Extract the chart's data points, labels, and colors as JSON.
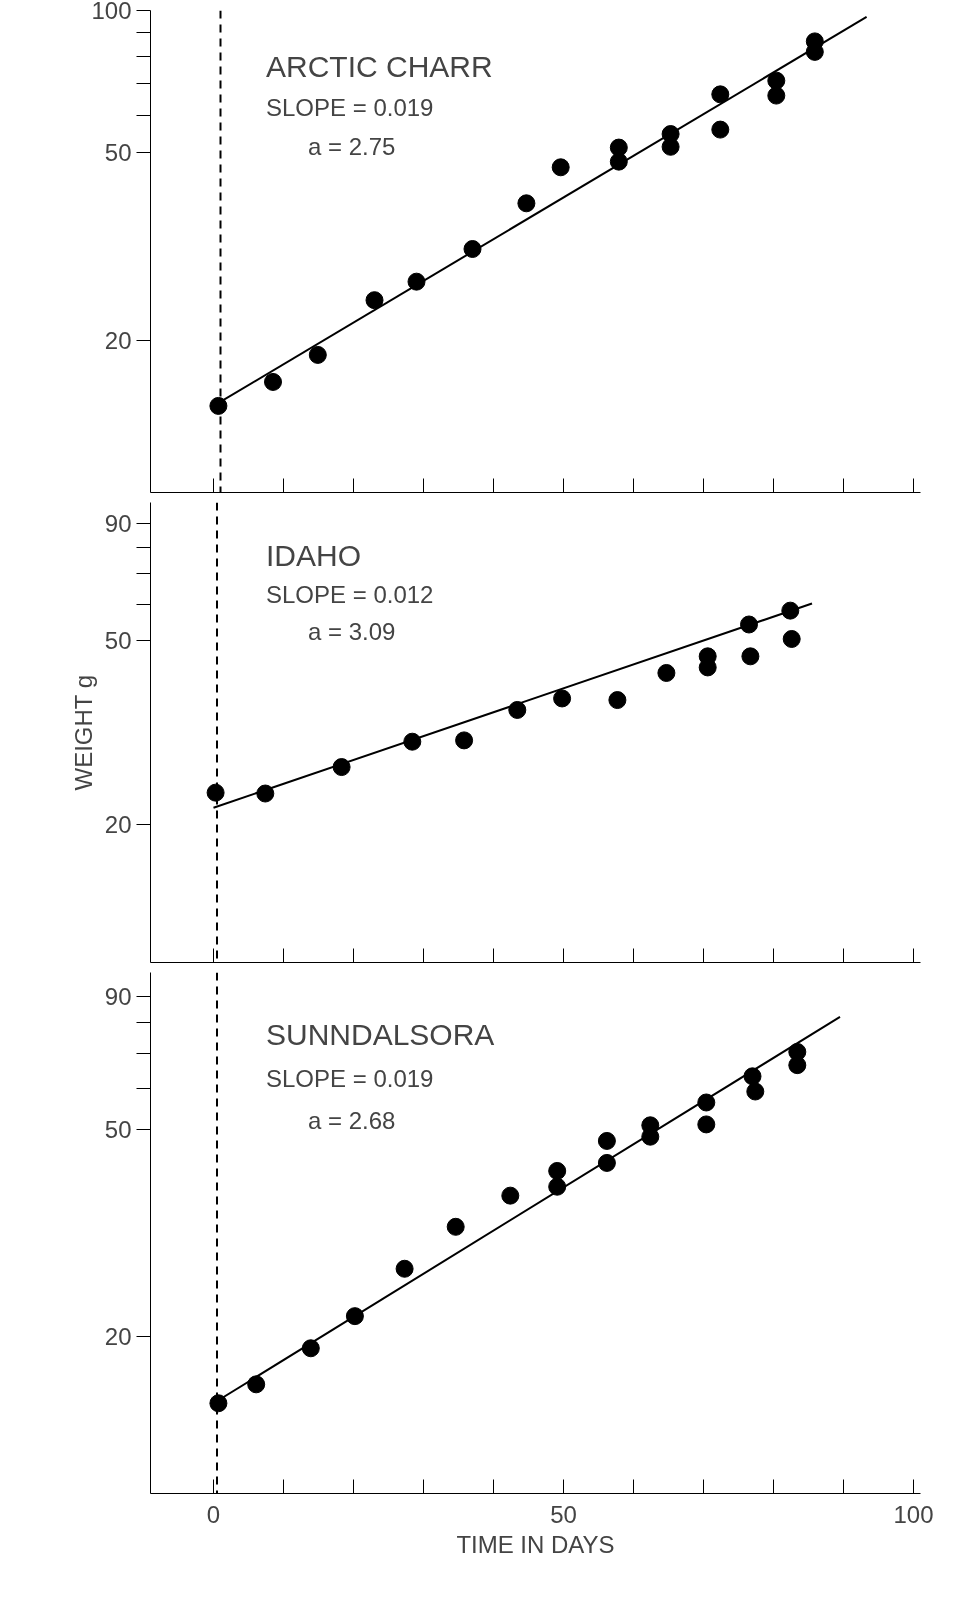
{
  "chart_data": [
    {
      "type": "scatter",
      "title": "ARCTIC CHARR",
      "annotations": [
        "SLOPE = 0.019",
        "a = 2.75"
      ],
      "log": true,
      "grid": false,
      "tick_labels": "y",
      "xlim": [
        -9,
        101
      ],
      "xticks": [
        {
          "value": 0,
          "label": null
        },
        {
          "value": 10,
          "label": null
        },
        {
          "value": 20,
          "label": null
        },
        {
          "value": 30,
          "label": null
        },
        {
          "value": 40,
          "label": null
        },
        {
          "value": 50,
          "label": null
        },
        {
          "value": 60,
          "label": null
        },
        {
          "value": 70,
          "label": null
        },
        {
          "value": 80,
          "label": null
        },
        {
          "value": 90,
          "label": null
        },
        {
          "value": 100,
          "label": null
        }
      ],
      "ylim": [
        9.5,
        100
      ],
      "yticks": [
        20,
        50,
        {
          "value": 60,
          "label": null
        },
        {
          "value": 70,
          "label": null
        },
        {
          "value": 80,
          "label": null
        },
        {
          "value": 90,
          "label": null
        },
        100
      ],
      "ref_lines": [
        {
          "axis": "x",
          "value": 1,
          "line_style": "dashed"
        }
      ],
      "series": [
        {
          "marker": "circle",
          "color": "#000000",
          "x": [
            0.7,
            8.5,
            14.9,
            23,
            29,
            37,
            44.7,
            49.6,
            57.9,
            57.9,
            65.3,
            65.3,
            72.4,
            72.4,
            80.4,
            80.4,
            85.9,
            85.9
          ],
          "values": [
            14.5,
            16.3,
            18.6,
            24.3,
            26.6,
            31.2,
            39,
            46.5,
            47.8,
            51.2,
            51.4,
            54.7,
            55.9,
            66.4,
            71,
            66,
            86,
            81.7
          ]
        },
        {
          "type": "line",
          "color": "#000000",
          "x": [
            0,
            93.3
          ],
          "values": [
            14.5,
            96.9
          ]
        }
      ]
    },
    {
      "type": "scatter",
      "title": "IDAHO",
      "annotations": [
        "SLOPE = 0.012",
        "a = 3.09"
      ],
      "ylabel": "WEIGHT g",
      "log": true,
      "grid": false,
      "tick_labels": "y",
      "xlim": [
        -9,
        101
      ],
      "xticks": [
        {
          "value": 0,
          "label": null
        },
        {
          "value": 10,
          "label": null
        },
        {
          "value": 20,
          "label": null
        },
        {
          "value": 30,
          "label": null
        },
        {
          "value": 40,
          "label": null
        },
        {
          "value": 50,
          "label": null
        },
        {
          "value": 60,
          "label": null
        },
        {
          "value": 70,
          "label": null
        },
        {
          "value": 80,
          "label": null
        },
        {
          "value": 90,
          "label": null
        },
        {
          "value": 100,
          "label": null
        }
      ],
      "ylim": [
        10,
        100
      ],
      "yticks": [
        20,
        50,
        {
          "value": 60,
          "label": null
        },
        {
          "value": 70,
          "label": null
        },
        {
          "value": 80,
          "label": null
        },
        90
      ],
      "ref_lines": [
        {
          "axis": "x",
          "value": 0.5,
          "line_style": "dashed"
        }
      ],
      "series": [
        {
          "marker": "circle",
          "color": "#000000",
          "x": [
            0.3,
            7.4,
            18.3,
            28.4,
            35.8,
            43.4,
            49.8,
            57.7,
            64.7,
            70.6,
            70.6,
            76.5,
            76.7,
            82.4,
            82.6
          ],
          "values": [
            23.4,
            23.3,
            26.6,
            30.2,
            30.4,
            35.4,
            37.5,
            37.2,
            42.6,
            46.3,
            43.8,
            54.3,
            46.3,
            58.2,
            50.5
          ]
        },
        {
          "type": "line",
          "color": "#000000",
          "x": [
            0,
            85.5
          ],
          "values": [
            21.7,
            60.3
          ]
        }
      ]
    },
    {
      "type": "scatter",
      "title": "SUNNDALSORA",
      "annotations": [
        "SLOPE = 0.019",
        "a = 2.68"
      ],
      "xlabel": "TIME IN DAYS",
      "log": true,
      "grid": false,
      "xlim": [
        -9,
        101
      ],
      "xticks": [
        0,
        {
          "value": 10,
          "label": null
        },
        {
          "value": 20,
          "label": null
        },
        {
          "value": 30,
          "label": null
        },
        {
          "value": 40,
          "label": null
        },
        50,
        {
          "value": 60,
          "label": null
        },
        {
          "value": 70,
          "label": null
        },
        {
          "value": 80,
          "label": null
        },
        {
          "value": 90,
          "label": null
        },
        100
      ],
      "ylim": [
        10,
        100
      ],
      "yticks": [
        20,
        50,
        {
          "value": 60,
          "label": null
        },
        {
          "value": 70,
          "label": null
        },
        {
          "value": 80,
          "label": null
        },
        90
      ],
      "ref_lines": [
        {
          "axis": "x",
          "value": 0.5,
          "line_style": "dashed"
        }
      ],
      "series": [
        {
          "marker": "circle",
          "color": "#000000",
          "x": [
            0.7,
            6.1,
            13.9,
            20.2,
            27.3,
            34.6,
            42.4,
            49.1,
            49.1,
            56.2,
            56.2,
            62.4,
            62.4,
            70.4,
            70.4,
            77,
            77.4,
            83.4,
            83.4
          ],
          "values": [
            14.9,
            16.2,
            19,
            21.9,
            27,
            32.5,
            37.3,
            38.8,
            41.6,
            43.1,
            47.5,
            48.4,
            50.9,
            51.1,
            56.3,
            63.2,
            59.1,
            66.4,
            70.4
          ]
        },
        {
          "type": "line",
          "color": "#000000",
          "x": [
            0,
            89.5
          ],
          "values": [
            14.9,
            82.2
          ]
        }
      ]
    }
  ]
}
